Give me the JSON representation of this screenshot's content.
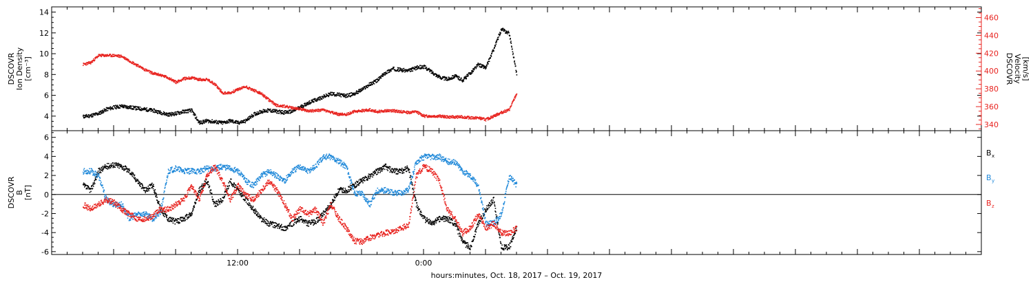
{
  "chart_data": [
    {
      "type": "scatter",
      "panel": "top",
      "ylabel_left": [
        "DSCOVR",
        "Ion Density",
        "[cm⁻³]"
      ],
      "ylabel_right": [
        "DSCOVR",
        "Velocity",
        "[km/s]"
      ],
      "yticks_left": [
        4,
        6,
        8,
        10,
        12,
        14
      ],
      "yticks_right": [
        340,
        360,
        380,
        400,
        420,
        440,
        460
      ],
      "ylim_left": [
        2.6,
        14.5
      ],
      "ylim_right": [
        333,
        472
      ],
      "series": [
        {
          "name": "Ion Density",
          "color": "#000000",
          "axis": "left",
          "x": [
            2.0,
            2.5,
            3.0,
            3.5,
            4.0,
            4.5,
            5.0,
            5.5,
            6.0,
            6.5,
            7.0,
            7.5,
            8.0,
            8.5,
            9.0,
            9.5,
            10.0,
            10.5,
            11.0,
            11.5,
            12.0,
            12.5,
            13.0,
            13.5,
            14.0,
            14.5,
            15.0,
            15.5,
            16.0,
            16.5,
            17.0,
            17.5,
            18.0,
            18.5,
            19.0,
            19.5,
            20.0,
            20.5,
            21.0,
            21.5,
            22.0,
            22.5,
            23.0,
            23.5,
            24.0,
            24.5,
            25.0,
            25.5,
            26.0,
            26.5,
            27.0,
            27.5,
            28.0,
            28.5,
            29.0,
            29.5,
            30.0
          ],
          "y": [
            4.0,
            4.1,
            4.3,
            4.7,
            4.9,
            5.0,
            4.9,
            4.8,
            4.7,
            4.6,
            4.4,
            4.2,
            4.3,
            4.5,
            4.6,
            3.4,
            3.6,
            3.5,
            3.4,
            3.6,
            3.4,
            3.6,
            4.2,
            4.5,
            4.6,
            4.5,
            4.4,
            4.5,
            4.9,
            5.3,
            5.6,
            5.9,
            6.2,
            6.1,
            6.0,
            6.2,
            6.6,
            7.1,
            7.5,
            8.2,
            8.6,
            8.5,
            8.4,
            8.7,
            8.8,
            8.3,
            7.8,
            7.6,
            7.9,
            7.5,
            8.2,
            9.0,
            8.7,
            10.5,
            12.4,
            12.0,
            8.0
          ]
        },
        {
          "name": "Velocity",
          "color": "#e8231f",
          "axis": "right",
          "x": [
            2.0,
            2.5,
            3.0,
            3.5,
            4.0,
            4.5,
            5.0,
            5.5,
            6.0,
            6.5,
            7.0,
            7.5,
            8.0,
            8.5,
            9.0,
            9.5,
            10.0,
            10.5,
            11.0,
            11.5,
            12.0,
            12.5,
            13.0,
            13.5,
            14.0,
            14.5,
            15.0,
            15.5,
            16.0,
            16.5,
            17.0,
            17.5,
            18.0,
            18.5,
            19.0,
            19.5,
            20.0,
            20.5,
            21.0,
            21.5,
            22.0,
            22.5,
            23.0,
            23.5,
            24.0,
            24.5,
            25.0,
            25.5,
            26.0,
            26.5,
            27.0,
            27.5,
            28.0,
            28.5,
            29.0,
            29.5,
            30.0
          ],
          "y": [
            408,
            410,
            418,
            418,
            418,
            417,
            412,
            407,
            402,
            398,
            396,
            393,
            388,
            392,
            393,
            391,
            391,
            386,
            376,
            376,
            380,
            383,
            379,
            375,
            368,
            362,
            361,
            359,
            358,
            356,
            356,
            357,
            354,
            352,
            352,
            355,
            356,
            357,
            355,
            356,
            356,
            355,
            354,
            355,
            350,
            350,
            350,
            349,
            349,
            349,
            348,
            348,
            346,
            350,
            354,
            357,
            376
          ]
        }
      ]
    },
    {
      "type": "scatter",
      "panel": "bottom",
      "ylabel_left": [
        "DSCOVR",
        "B",
        "[nT]"
      ],
      "yticks": [
        -6,
        -4,
        -2,
        0,
        2,
        4,
        6
      ],
      "ylim": [
        -6.3,
        6.7
      ],
      "legend": [
        "Bx",
        "By",
        "Bz"
      ],
      "series": [
        {
          "name": "Bx",
          "color": "#000000",
          "x": [
            2.0,
            2.5,
            3.0,
            3.5,
            4.0,
            4.5,
            5.0,
            5.5,
            6.0,
            6.5,
            7.0,
            7.5,
            8.0,
            8.5,
            9.0,
            9.5,
            10.0,
            10.5,
            11.0,
            11.5,
            12.0,
            12.5,
            13.0,
            13.5,
            14.0,
            14.5,
            15.0,
            15.5,
            16.0,
            16.5,
            17.0,
            17.5,
            18.0,
            18.5,
            19.0,
            19.5,
            20.0,
            20.5,
            21.0,
            21.5,
            22.0,
            22.5,
            23.0,
            23.5,
            24.0,
            24.5,
            25.0,
            25.5,
            26.0,
            26.5,
            27.0,
            27.5,
            28.0,
            28.5,
            29.0,
            29.5,
            30.0
          ],
          "y": [
            1.0,
            0.5,
            2.5,
            3.0,
            3.2,
            3.0,
            2.5,
            1.5,
            0.5,
            1.0,
            -1.5,
            -2.5,
            -2.8,
            -2.5,
            -2.0,
            0.5,
            1.5,
            -1.0,
            -0.5,
            1.5,
            0.5,
            -0.5,
            -1.5,
            -2.5,
            -3.0,
            -3.2,
            -3.5,
            -3.0,
            -2.5,
            -3.0,
            -2.8,
            -2.0,
            -1.0,
            0.5,
            0.5,
            1.0,
            1.5,
            2.0,
            2.5,
            3.0,
            2.5,
            2.5,
            2.8,
            -1.0,
            -2.5,
            -3.0,
            -2.5,
            -2.5,
            -3.0,
            -5.0,
            -5.5,
            -3.0,
            -1.5,
            -0.5,
            -5.5,
            -5.5,
            -3.5
          ]
        },
        {
          "name": "By",
          "color": "#1e88d9",
          "x": [
            2.0,
            2.5,
            3.0,
            3.5,
            4.0,
            4.5,
            5.0,
            5.5,
            6.0,
            6.5,
            7.0,
            7.5,
            8.0,
            8.5,
            9.0,
            9.5,
            10.0,
            10.5,
            11.0,
            11.5,
            12.0,
            12.5,
            13.0,
            13.5,
            14.0,
            14.5,
            15.0,
            15.5,
            16.0,
            16.5,
            17.0,
            17.5,
            18.0,
            18.5,
            19.0,
            19.5,
            20.0,
            20.5,
            21.0,
            21.5,
            22.0,
            22.5,
            23.0,
            23.5,
            24.0,
            24.5,
            25.0,
            25.5,
            26.0,
            26.5,
            27.0,
            27.5,
            28.0,
            28.5,
            29.0,
            29.5,
            30.0
          ],
          "y": [
            2.5,
            2.5,
            2.0,
            -0.5,
            -1.0,
            -1.0,
            -2.5,
            -2.0,
            -2.0,
            -2.5,
            -1.8,
            2.5,
            2.8,
            2.5,
            2.5,
            2.5,
            2.8,
            2.8,
            3.0,
            2.8,
            2.5,
            1.5,
            1.0,
            2.0,
            2.5,
            2.0,
            1.5,
            2.5,
            3.0,
            2.5,
            3.0,
            4.0,
            4.0,
            3.5,
            3.0,
            0.2,
            0.2,
            -1.0,
            0.5,
            0.5,
            0.2,
            0.2,
            0.5,
            3.5,
            4.0,
            4.0,
            4.0,
            3.5,
            3.5,
            2.5,
            2.0,
            1.0,
            -3.0,
            -3.0,
            -2.0,
            2.0,
            1.0
          ]
        },
        {
          "name": "Bz",
          "color": "#e8231f",
          "x": [
            2.0,
            2.5,
            3.0,
            3.5,
            4.0,
            4.5,
            5.0,
            5.5,
            6.0,
            6.5,
            7.0,
            7.5,
            8.0,
            8.5,
            9.0,
            9.5,
            10.0,
            10.5,
            11.0,
            11.5,
            12.0,
            12.5,
            13.0,
            13.5,
            14.0,
            14.5,
            15.0,
            15.5,
            16.0,
            16.5,
            17.0,
            17.5,
            18.0,
            18.5,
            19.0,
            19.5,
            20.0,
            20.5,
            21.0,
            21.5,
            22.0,
            22.5,
            23.0,
            23.5,
            24.0,
            24.5,
            25.0,
            25.5,
            26.0,
            26.5,
            27.0,
            27.5,
            28.0,
            28.5,
            29.0,
            29.5,
            30.0
          ],
          "y": [
            -1.0,
            -1.5,
            -1.0,
            -0.5,
            -0.8,
            -1.5,
            -2.0,
            -2.5,
            -2.5,
            -2.2,
            -1.5,
            -1.5,
            -1.0,
            -0.5,
            1.0,
            -0.5,
            2.0,
            3.0,
            1.5,
            -0.5,
            1.0,
            0.0,
            -0.5,
            0.5,
            1.5,
            0.5,
            -1.0,
            -2.5,
            -1.5,
            -2.0,
            -1.5,
            -3.0,
            -1.0,
            -2.5,
            -3.5,
            -4.8,
            -4.9,
            -4.5,
            -4.2,
            -4.0,
            -3.8,
            -3.5,
            -3.2,
            2.0,
            3.0,
            2.5,
            1.5,
            -1.5,
            -2.5,
            -4.0,
            -3.5,
            -2.0,
            -3.5,
            -3.0,
            -4.0,
            -4.0,
            -3.5
          ]
        }
      ]
    }
  ],
  "xaxis": {
    "major_labels": [
      {
        "hour": 12,
        "label": "12:00"
      },
      {
        "hour": 24,
        "label": "0:00"
      }
    ],
    "title": "hours:minutes, Oct. 18, 2017 – Oct. 19, 2017"
  },
  "legend_labels": {
    "bx_main": "B",
    "bx_sub": "x",
    "by_main": "B",
    "by_sub": "y",
    "bz_main": "B",
    "bz_sub": "z"
  },
  "colors": {
    "black": "#000000",
    "red": "#e8231f",
    "blue": "#1e88d9"
  }
}
